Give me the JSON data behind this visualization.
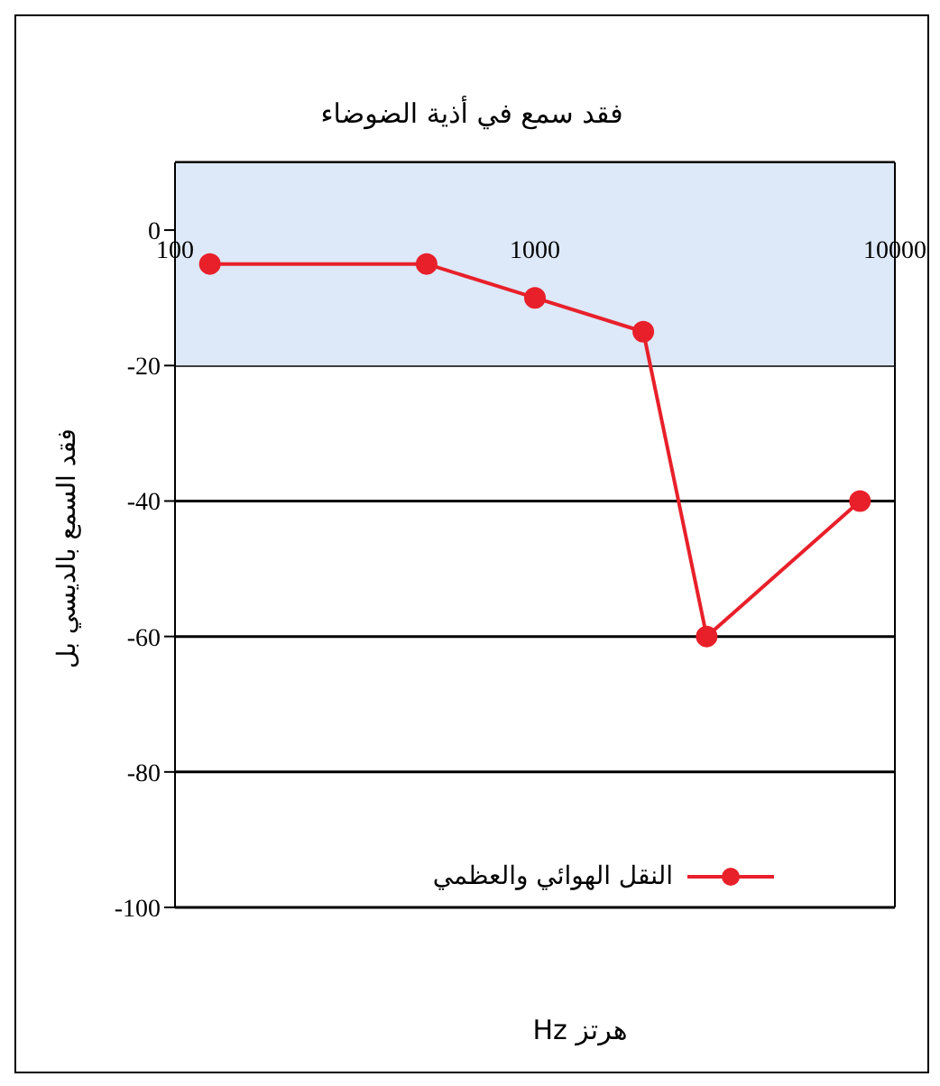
{
  "chart_data": {
    "type": "line",
    "title": "فقد سمع في أذية الضوضاء",
    "xlabel": "Hz هرتز",
    "ylabel": "فقد السمع بالديسي بل",
    "x": [
      125,
      500,
      1000,
      2000,
      3000,
      8000
    ],
    "series": [
      {
        "name": "النقل الهوائي والعظمي",
        "color": "#e8202a",
        "values": [
          -5,
          -5,
          -10,
          -15,
          -60,
          -40
        ]
      }
    ],
    "log": "x",
    "xlim": [
      100,
      10000
    ],
    "xticks": [
      100,
      1000,
      10000
    ],
    "ylim": [
      -100,
      10
    ],
    "yticks": [
      -100,
      -80,
      -60,
      -40,
      -20,
      0
    ],
    "bands": [
      {
        "axis": "y",
        "from": -20,
        "to": 10,
        "color": "#dde8f8"
      }
    ],
    "grid": "y",
    "legend": "bottom",
    "marker": "circle",
    "line_style": "solid"
  }
}
